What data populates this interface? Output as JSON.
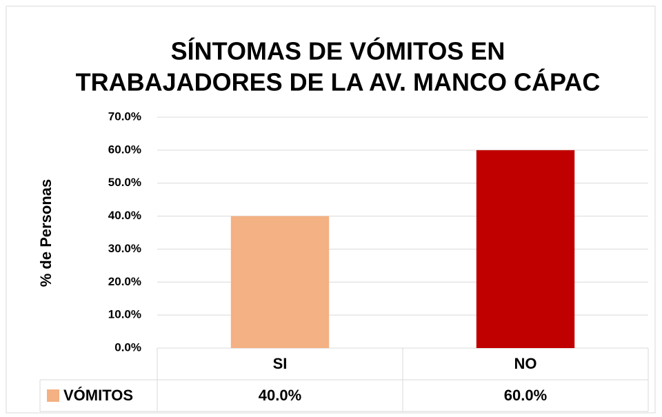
{
  "chart_data": {
    "type": "bar",
    "title": [
      "SÍNTOMAS DE VÓMITOS EN",
      "TRABAJADORES DE LA AV. MANCO CÁPAC"
    ],
    "ylabel": "% de Personas",
    "categories": [
      "SI",
      "NO"
    ],
    "series": [
      {
        "name": "VÓMITOS",
        "colors": [
          "#f4b183",
          "#c00000"
        ],
        "values": [
          40,
          60
        ],
        "value_labels": [
          "40.0%",
          "60.0%"
        ]
      }
    ],
    "ylim": [
      0,
      70
    ],
    "yticks": [
      {
        "value": 0,
        "label": "0.0%"
      },
      {
        "value": 10,
        "label": "10.0%"
      },
      {
        "value": 20,
        "label": "20.0%"
      },
      {
        "value": 30,
        "label": "30.0%"
      },
      {
        "value": 40,
        "label": "40.0%"
      },
      {
        "value": 50,
        "label": "50.0%"
      },
      {
        "value": 60,
        "label": "60.0%"
      },
      {
        "value": 70,
        "label": "70.0%"
      }
    ],
    "grid": true,
    "data_table": true
  }
}
